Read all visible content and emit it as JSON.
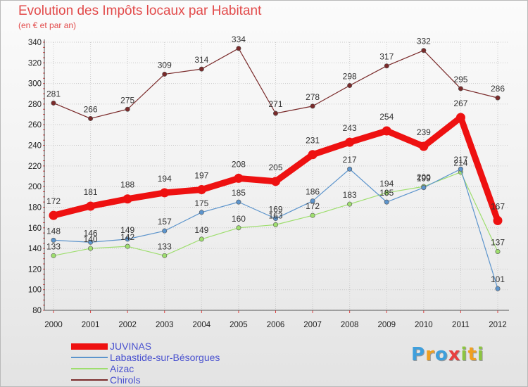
{
  "chart_data": {
    "type": "line",
    "title": "Evolution des Impôts locaux par Habitant",
    "subtitle": "(en € et par an)",
    "x": [
      "2000",
      "2001",
      "2002",
      "2003",
      "2004",
      "2005",
      "2006",
      "2007",
      "2008",
      "2009",
      "2010",
      "2011",
      "2012"
    ],
    "ylim": [
      80,
      340
    ],
    "yticks": [
      "80",
      "100",
      "120",
      "140",
      "160",
      "180",
      "200",
      "220",
      "240",
      "260",
      "280",
      "300",
      "320",
      "340"
    ],
    "grid": true,
    "legend_position": "bottom-left",
    "series": [
      {
        "name": "JUVINAS",
        "color": "#ee1111",
        "values": [
          172,
          181,
          188,
          194,
          197,
          208,
          205,
          231,
          243,
          254,
          239,
          267,
          167
        ]
      },
      {
        "name": "Labastide-sur-Bésorgues",
        "color": "#5c94cc",
        "values": [
          148,
          146,
          149,
          157,
          175,
          185,
          169,
          186,
          217,
          185,
          199,
          217,
          101
        ]
      },
      {
        "name": "Aizac",
        "color": "#9ede6e",
        "values": [
          133,
          140,
          142,
          133,
          149,
          160,
          163,
          172,
          183,
          194,
          200,
          214,
          137
        ]
      },
      {
        "name": "Chirols",
        "color": "#7a2a2a",
        "values": [
          281,
          266,
          275,
          309,
          314,
          334,
          271,
          278,
          298,
          317,
          332,
          295,
          286
        ]
      }
    ]
  },
  "logo": {
    "letters": [
      "P",
      "r",
      "o",
      "x",
      "i",
      "t",
      "i"
    ],
    "colors": [
      "#3f9fdc",
      "#f0a020",
      "#3f9fdc",
      "#e84040",
      "#8cc63f",
      "#f0a020",
      "#8cc63f"
    ]
  }
}
